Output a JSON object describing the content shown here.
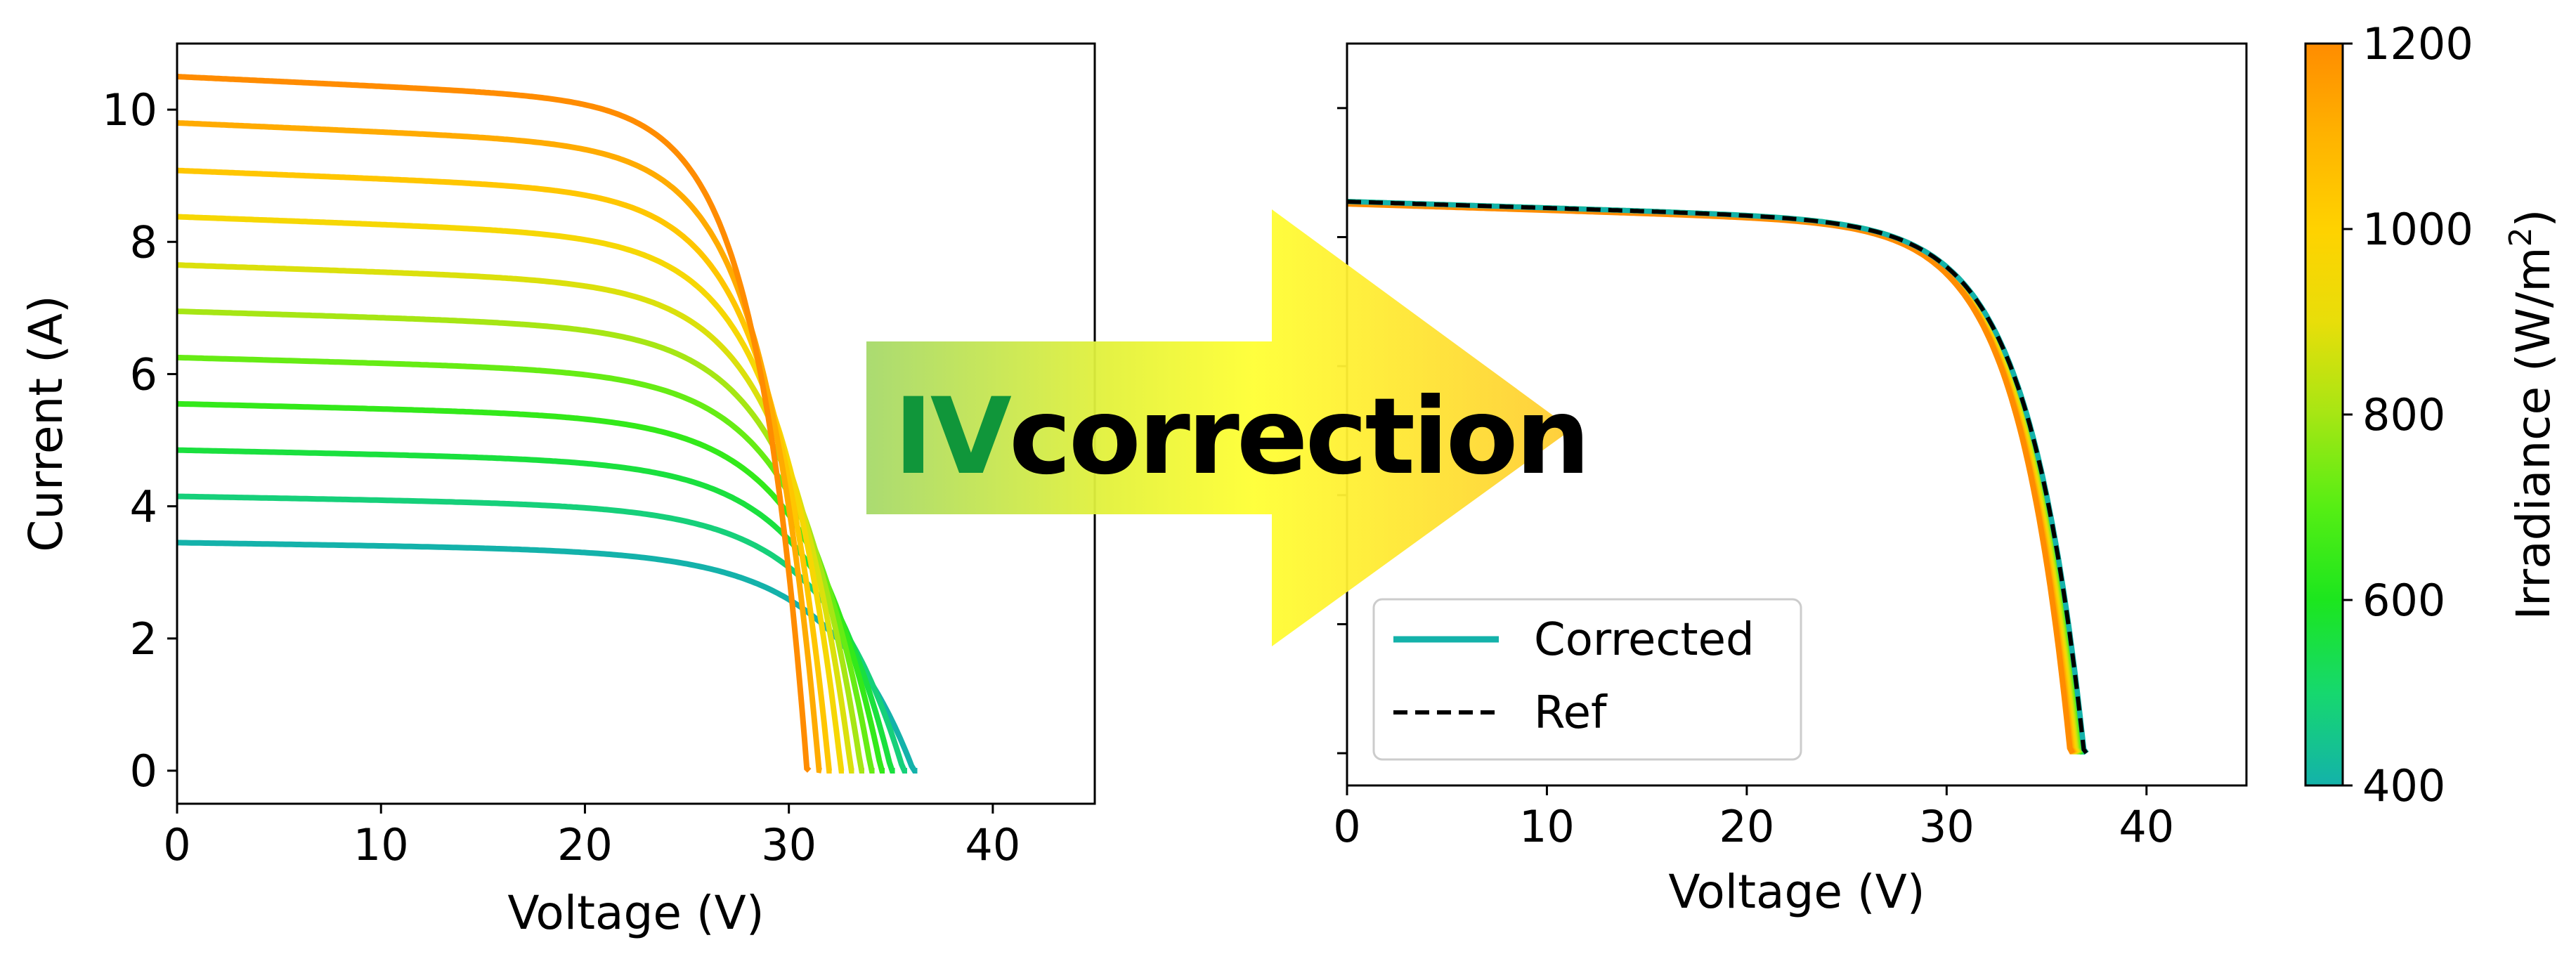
{
  "figure": {
    "banner": {
      "prefix": "IV",
      "suffix": "correction"
    }
  },
  "colors": {
    "banner_prefix": "#10963a",
    "banner_suffix": "#000000",
    "colormap": [
      "#14b2aa",
      "#16d86e",
      "#1ce61e",
      "#56ee14",
      "#a6e614",
      "#e8de0a",
      "#ffd200",
      "#ffb300",
      "#ff8c00"
    ],
    "corrected_line": "#14b2aa",
    "ref_line": "#000000"
  },
  "chart_data": [
    {
      "type": "line",
      "title": "",
      "xlabel": "Voltage (V)",
      "ylabel": "Current (A)",
      "xlim": [
        0,
        45
      ],
      "ylim": [
        -0.5,
        11.0
      ],
      "xticks": [
        0,
        10,
        20,
        30,
        40
      ],
      "yticks": [
        0,
        2,
        4,
        6,
        8,
        10
      ],
      "grid": false,
      "legend": "none",
      "series_model": "single-diode I-V curves, one per irradiance level, colored by irradiance",
      "series": [
        {
          "irradiance": 400,
          "isc": 3.45,
          "voc": 36.3,
          "knee_voltage": 27.0
        },
        {
          "irradiance": 480,
          "isc": 4.15,
          "voc": 35.8,
          "knee_voltage": 27.0
        },
        {
          "irradiance": 560,
          "isc": 4.85,
          "voc": 35.2,
          "knee_voltage": 26.8
        },
        {
          "irradiance": 640,
          "isc": 5.55,
          "voc": 34.7,
          "knee_voltage": 26.6
        },
        {
          "irradiance": 720,
          "isc": 6.25,
          "voc": 34.2,
          "knee_voltage": 26.4
        },
        {
          "irradiance": 800,
          "isc": 6.95,
          "voc": 33.7,
          "knee_voltage": 26.2
        },
        {
          "irradiance": 880,
          "isc": 7.65,
          "voc": 33.2,
          "knee_voltage": 26.0
        },
        {
          "irradiance": 960,
          "isc": 8.38,
          "voc": 32.7,
          "knee_voltage": 25.8
        },
        {
          "irradiance": 1040,
          "isc": 9.08,
          "voc": 32.1,
          "knee_voltage": 25.6
        },
        {
          "irradiance": 1120,
          "isc": 9.8,
          "voc": 31.6,
          "knee_voltage": 25.4
        },
        {
          "irradiance": 1200,
          "isc": 10.5,
          "voc": 31.0,
          "knee_voltage": 25.2
        }
      ]
    },
    {
      "type": "line",
      "title": "",
      "xlabel": "Voltage (V)",
      "ylabel": "",
      "xlim": [
        0,
        45
      ],
      "ylim": [
        -0.5,
        11.0
      ],
      "xticks": [
        0,
        10,
        20,
        30,
        40
      ],
      "yticks": [
        0,
        2,
        4,
        6,
        8,
        10
      ],
      "ytick_labels_shown": false,
      "grid": false,
      "legend": "lower-left",
      "corrected_spread": {
        "voc_min": 36.3,
        "voc_max": 37.0
      },
      "series": [
        {
          "name": "Corrected",
          "style": "solid",
          "isc": 8.55,
          "voc": 37.0,
          "knee_voltage": 30.5
        },
        {
          "name": "Ref",
          "style": "dashed",
          "isc": 8.55,
          "voc": 37.0,
          "knee_voltage": 30.5
        }
      ]
    },
    {
      "type": "colorbar",
      "label": "Irradiance (W/m²)",
      "label_base": "Irradiance (W/m",
      "label_sup": "2",
      "label_end": ")",
      "range": [
        400,
        1200
      ],
      "ticks": [
        400,
        600,
        800,
        1000,
        1200
      ]
    }
  ]
}
